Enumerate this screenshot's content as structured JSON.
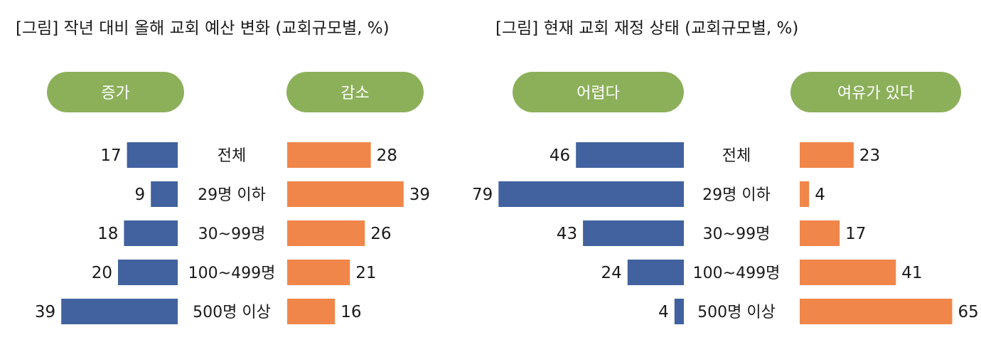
{
  "chart_data": [
    {
      "type": "bar",
      "title": "[그림] 작년 대비 올해 교회 예산 변화 (교회규모별, %)",
      "categories": [
        "전체",
        "29명 이하",
        "30~99명",
        "100~499명",
        "500명 이상"
      ],
      "series": [
        {
          "name": "증가",
          "values": [
            17,
            9,
            18,
            20,
            39
          ]
        },
        {
          "name": "감소",
          "values": [
            28,
            39,
            26,
            21,
            16
          ]
        }
      ],
      "xlim": [
        0,
        80
      ]
    },
    {
      "type": "bar",
      "title": "[그림] 현재 교회 재정 상태 (교회규모별, %)",
      "categories": [
        "전체",
        "29명 이하",
        "30~99명",
        "100~499명",
        "500명 이상"
      ],
      "series": [
        {
          "name": "어렵다",
          "values": [
            46,
            79,
            43,
            24,
            4
          ]
        },
        {
          "name": "여유가 있다",
          "values": [
            23,
            4,
            17,
            41,
            65
          ]
        }
      ],
      "xlim": [
        0,
        80
      ]
    }
  ],
  "colors": {
    "left_bar": "#41629f",
    "right_bar": "#f0864a",
    "pill": "#8cb05a",
    "pill_text": "#ffffff"
  }
}
